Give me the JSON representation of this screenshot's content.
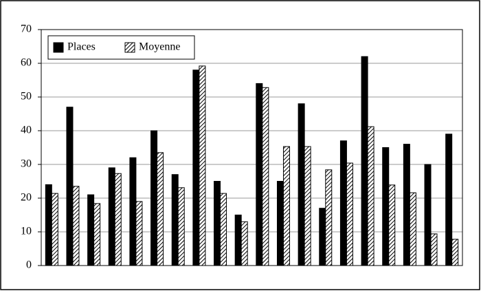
{
  "chart_data": {
    "type": "bar",
    "categories": [
      null,
      null,
      null,
      null,
      null,
      null,
      null,
      null,
      null,
      null,
      null,
      null,
      null,
      null,
      null,
      null,
      null,
      null,
      null,
      null
    ],
    "series": [
      {
        "name": "Places",
        "color": "#000000",
        "values": [
          24,
          47,
          21,
          29,
          32,
          40,
          27,
          58,
          25,
          15,
          54,
          25,
          48,
          17,
          37,
          62,
          35,
          36,
          30,
          39
        ]
      },
      {
        "name": "Moyenne",
        "color": "#ffffff",
        "pattern": "hatch",
        "values": [
          21.4,
          23.5,
          18.4,
          27.3,
          19,
          33.5,
          23.1,
          59.2,
          21.4,
          13,
          52.8,
          35.3,
          35.3,
          28.4,
          30.4,
          41.2,
          23.9,
          21.6,
          9.4,
          7.8
        ]
      }
    ],
    "ylim": [
      0,
      70
    ],
    "yticks": [
      0,
      10,
      20,
      30,
      40,
      50,
      60,
      70
    ],
    "grid": true,
    "legend": "top-left"
  }
}
